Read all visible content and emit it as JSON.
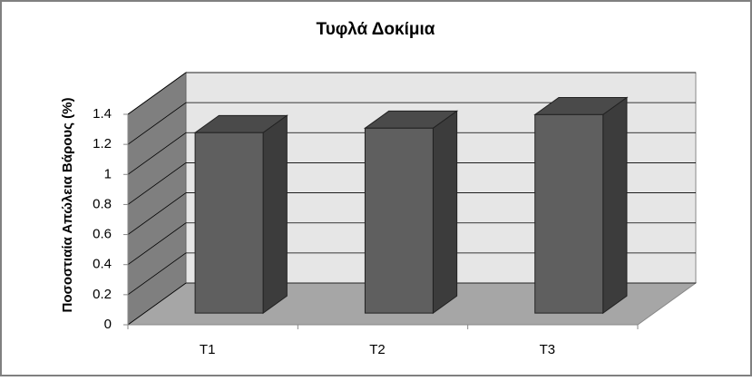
{
  "chart_data": {
    "type": "bar3d",
    "title": "Τυφλά Δοκίμια",
    "ylabel": "Ποσοστιαία  Απώλεια Βάρους (%)",
    "categories": [
      "T1",
      "T2",
      "T3"
    ],
    "values": [
      1.2,
      1.23,
      1.32
    ],
    "color": "#5f5f5f",
    "ylim": [
      0,
      1.4
    ],
    "yticks": [
      0,
      0.2,
      0.4,
      0.6,
      0.8,
      1,
      1.2,
      1.4
    ],
    "grid": true
  }
}
